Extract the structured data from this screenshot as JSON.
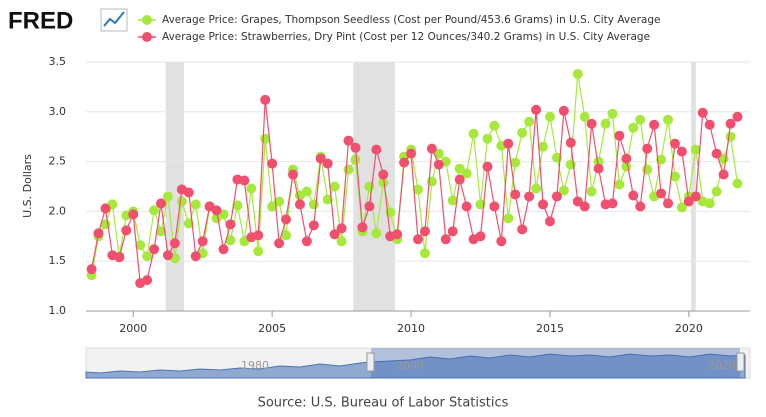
{
  "logo": "FRED",
  "chart_data": {
    "type": "line",
    "ylabel": "U.S. Dollars",
    "source": "Source: U.S. Bureau of Labor Statistics",
    "x": [
      1998.5,
      1998.75,
      1999,
      1999.25,
      1999.5,
      1999.75,
      2000,
      2000.25,
      2000.5,
      2000.75,
      2001,
      2001.25,
      2001.5,
      2001.75,
      2002,
      2002.25,
      2002.5,
      2002.75,
      2003,
      2003.25,
      2003.5,
      2003.75,
      2004,
      2004.25,
      2004.5,
      2004.75,
      2005,
      2005.25,
      2005.5,
      2005.75,
      2006,
      2006.25,
      2006.5,
      2006.75,
      2007,
      2007.25,
      2007.5,
      2007.75,
      2008,
      2008.25,
      2008.5,
      2008.75,
      2009,
      2009.25,
      2009.5,
      2009.75,
      2010,
      2010.25,
      2010.5,
      2010.75,
      2011,
      2011.25,
      2011.5,
      2011.75,
      2012,
      2012.25,
      2012.5,
      2012.75,
      2013,
      2013.25,
      2013.5,
      2013.75,
      2014,
      2014.25,
      2014.5,
      2014.75,
      2015,
      2015.25,
      2015.5,
      2015.75,
      2016,
      2016.25,
      2016.5,
      2016.75,
      2017,
      2017.25,
      2017.5,
      2017.75,
      2018,
      2018.25,
      2018.5,
      2018.75,
      2019,
      2019.25,
      2019.5,
      2019.75,
      2020,
      2020.25,
      2020.5,
      2020.75,
      2021,
      2021.25,
      2021.5,
      2021.75
    ],
    "series": [
      {
        "name": "Average Price: Grapes, Thompson Seedless (Cost per Pound/453.6 Grams) in U.S. City Average",
        "color": "#a6e83c",
        "values": [
          1.36,
          1.75,
          1.87,
          2.07,
          1.55,
          1.96,
          2.0,
          1.66,
          1.55,
          2.01,
          1.8,
          2.15,
          1.53,
          2.1,
          1.88,
          2.07,
          1.58,
          2.05,
          1.93,
          1.97,
          1.71,
          2.06,
          1.7,
          2.23,
          1.6,
          2.73,
          2.05,
          2.1,
          1.76,
          2.42,
          2.16,
          2.2,
          2.07,
          2.55,
          2.12,
          2.25,
          1.7,
          2.42,
          2.52,
          1.8,
          2.25,
          1.78,
          2.29,
          1.99,
          1.72,
          2.55,
          2.62,
          2.22,
          1.58,
          2.3,
          2.58,
          2.5,
          2.11,
          2.43,
          2.38,
          2.78,
          2.07,
          2.73,
          2.86,
          2.66,
          1.93,
          2.49,
          2.79,
          2.9,
          2.23,
          2.65,
          2.95,
          2.54,
          2.21,
          2.47,
          3.38,
          2.95,
          2.2,
          2.5,
          2.88,
          2.98,
          2.27,
          2.45,
          2.84,
          2.92,
          2.42,
          2.15,
          2.52,
          2.92,
          2.35,
          2.04,
          2.15,
          2.62,
          2.1,
          2.08,
          2.2,
          2.53,
          2.75,
          2.28
        ]
      },
      {
        "name": "Average Price: Strawberries, Dry Pint (Cost per 12 Ounces/340.2 Grams) in U.S. City Average",
        "color": "#f04f6e",
        "values": [
          1.42,
          1.78,
          2.03,
          1.56,
          1.54,
          1.81,
          1.97,
          1.28,
          1.31,
          1.62,
          2.08,
          1.56,
          1.68,
          2.22,
          2.19,
          1.55,
          1.7,
          2.05,
          2.01,
          1.62,
          1.87,
          2.32,
          2.31,
          1.74,
          1.76,
          3.12,
          2.48,
          1.68,
          1.92,
          2.37,
          2.07,
          1.7,
          1.86,
          2.53,
          2.48,
          1.77,
          1.83,
          2.71,
          2.64,
          1.84,
          2.05,
          2.62,
          2.37,
          1.75,
          1.77,
          2.49,
          2.58,
          1.72,
          1.8,
          2.63,
          2.47,
          1.72,
          1.8,
          2.32,
          2.05,
          1.72,
          1.75,
          2.45,
          2.05,
          1.7,
          2.68,
          2.17,
          1.82,
          2.15,
          3.02,
          2.07,
          1.9,
          2.15,
          3.01,
          2.69,
          2.1,
          2.05,
          2.88,
          2.43,
          2.07,
          2.08,
          2.76,
          2.53,
          2.16,
          2.05,
          2.63,
          2.87,
          2.18,
          2.08,
          2.68,
          2.6,
          2.1,
          2.15,
          2.99,
          2.87,
          2.58,
          2.37,
          2.88,
          2.95
        ]
      }
    ],
    "shaded_periods": [
      [
        2001.17,
        2001.83
      ],
      [
        2007.92,
        2009.42
      ],
      [
        2020.08,
        2020.25
      ]
    ],
    "xlim": [
      1998.3,
      2022.2
    ],
    "xticks": [
      2000,
      2005,
      2010,
      2015,
      2020
    ],
    "ylim": [
      1.0,
      3.5
    ],
    "yticks": [
      {
        "value": 1.0,
        "label": "1.0"
      },
      1.5,
      {
        "value": 2.0,
        "label": "2.0"
      },
      2.5,
      {
        "value": 3.0,
        "label": "3.0"
      },
      3.5
    ],
    "grid": true,
    "navigator_labels": [
      "1980",
      "2000",
      "2020"
    ]
  }
}
